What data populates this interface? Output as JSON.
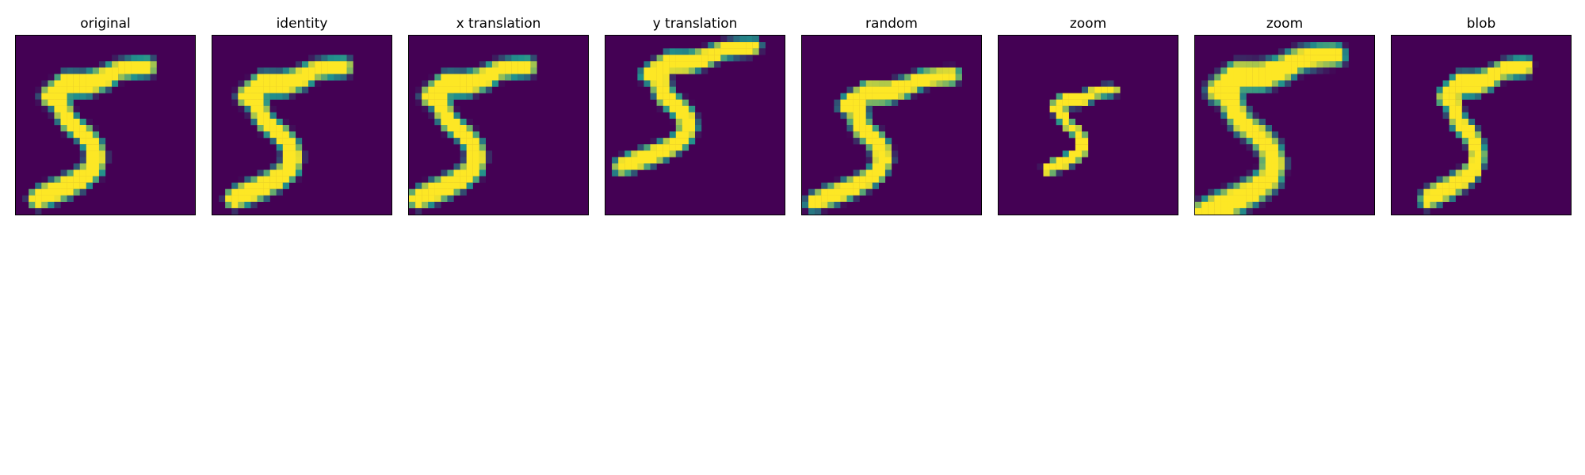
{
  "figure": {
    "background_color": "#ffffff",
    "colormap": "viridis",
    "colors": {
      "low": "#440154",
      "mid": "#21918c",
      "high": "#fde725"
    }
  },
  "panels": [
    {
      "title": "original"
    },
    {
      "title": "identity"
    },
    {
      "title": "x translation"
    },
    {
      "title": "y translation"
    },
    {
      "title": "random"
    },
    {
      "title": "zoom"
    },
    {
      "title": "zoom"
    },
    {
      "title": "blob"
    }
  ]
}
